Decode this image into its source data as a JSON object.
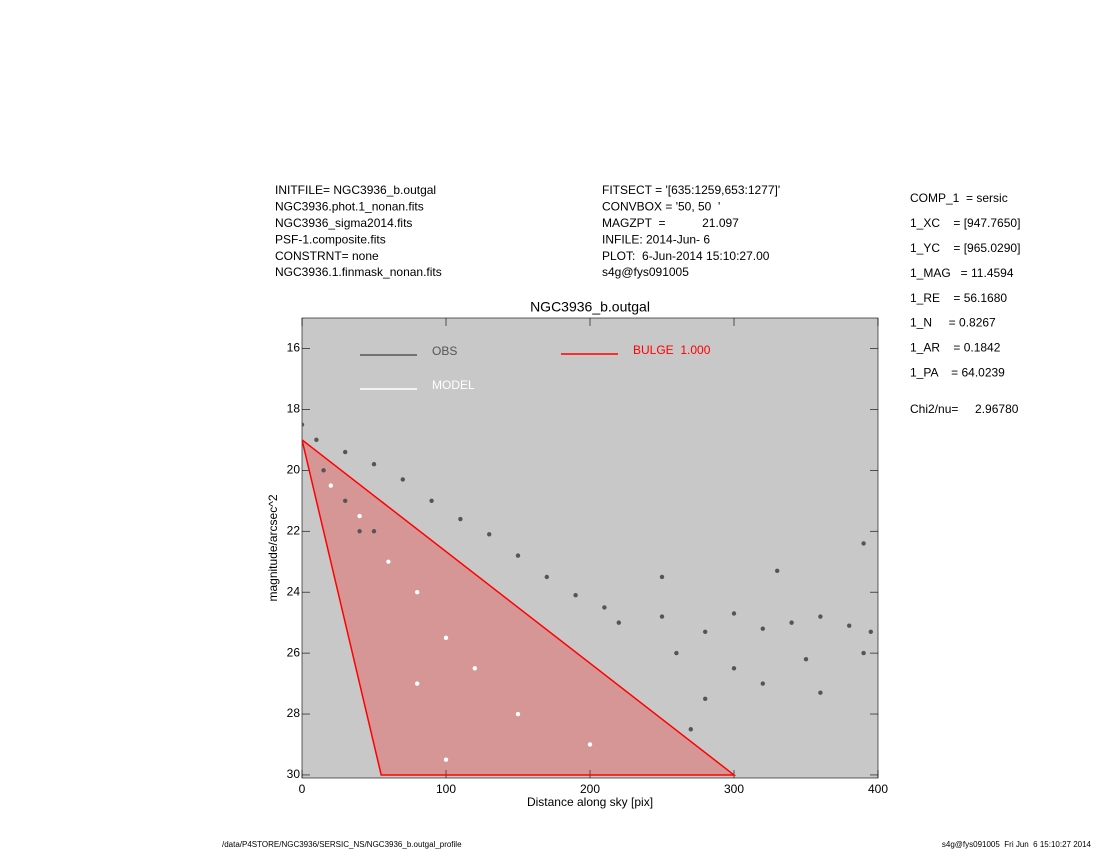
{
  "info": {
    "left": [
      "INITFILE= NGC3936_b.outgal",
      "NGC3936.phot.1_nonan.fits",
      "NGC3936_sigma2014.fits",
      "PSF-1.composite.fits",
      "CONSTRNT= none",
      "NGC3936.1.finmask_nonan.fits"
    ],
    "middle": [
      "FITSECT = '[635:1259,653:1277]'",
      "CONVBOX = '50, 50  '",
      "MAGZPT  =           21.097",
      "INFILE: 2014-Jun- 6",
      "PLOT:  6-Jun-2014 15:10:27.00",
      "s4g@fys091005"
    ],
    "right": [
      "COMP_1  = sersic",
      "1_XC    = [947.7650]",
      "1_YC    = [965.0290]",
      "1_MAG   = 11.4594",
      "1_RE    = 56.1680",
      "1_N     = 0.8267",
      "1_AR    = 0.1842",
      "1_PA    = 64.0239"
    ],
    "chi2": "Chi2/nu=     2.96780",
    "footer_left": "/data/P4STORE/NGC3936/SERSIC_NS/NGC3936_b.outgal_profile",
    "footer_right": "s4g@fys091005  Fri Jun  6 15:10:27 2014"
  },
  "chart_data": {
    "type": "scatter",
    "title": "NGC3936_b.outgal",
    "x_label": "Distance along sky [pix]",
    "y_label": "magnitude/arcsec^2",
    "xlim": [
      0,
      400
    ],
    "ylim": [
      30.1,
      15
    ],
    "xticks": [
      0,
      100,
      200,
      300,
      400
    ],
    "yticks": [
      16,
      18,
      20,
      22,
      24,
      26,
      28,
      30
    ],
    "background": "#c8c8c8",
    "series": [
      {
        "name": "OBS",
        "color": "#555555",
        "mode": "points",
        "x": [
          0,
          10,
          30,
          50,
          70,
          90,
          110,
          130,
          150,
          170,
          190,
          210,
          15,
          30,
          40,
          50,
          60,
          220,
          250,
          280,
          300,
          320,
          340,
          360,
          380,
          395,
          260,
          300,
          350,
          390,
          280,
          320,
          250,
          330,
          390,
          270,
          360
        ],
        "y": [
          18.5,
          19.0,
          19.4,
          19.8,
          20.3,
          21.0,
          21.6,
          22.1,
          22.8,
          23.5,
          24.1,
          24.5,
          20,
          21,
          22,
          22,
          23,
          25,
          24.8,
          25.3,
          24.7,
          25.2,
          25.0,
          24.8,
          25.1,
          25.3,
          26,
          26.5,
          26.2,
          26.0,
          27.5,
          27.0,
          23.5,
          23.3,
          22.4,
          28.5,
          27.3
        ]
      },
      {
        "name": "MODEL",
        "color": "#ffffff",
        "mode": "points",
        "x": [
          20,
          40,
          60,
          80,
          100,
          120,
          80,
          150,
          200,
          100
        ],
        "y": [
          20.5,
          21.5,
          23,
          24,
          25.5,
          26.5,
          27,
          28,
          29,
          29.5
        ]
      },
      {
        "name": "BULGE  1.000",
        "color": "#ff0000",
        "mode": "area",
        "x": [
          0,
          300,
          55,
          0
        ],
        "y": [
          19,
          30,
          30,
          19
        ]
      }
    ]
  }
}
